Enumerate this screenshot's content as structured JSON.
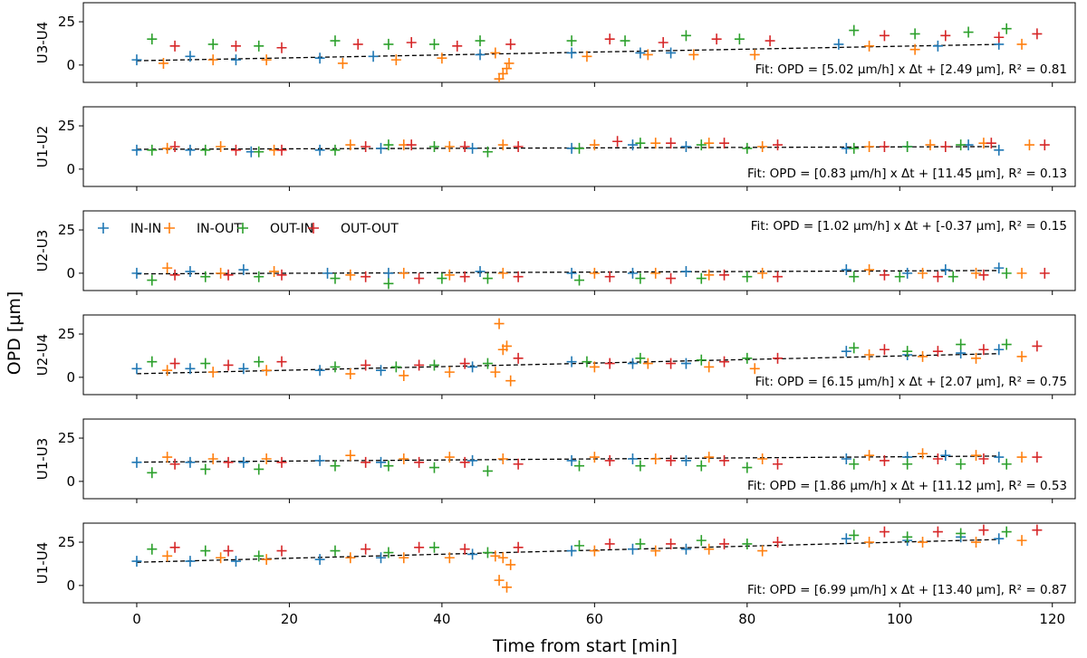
{
  "chart_data": {
    "type": "scatter",
    "xlabel": "Time from start [min]",
    "ylabel": "OPD [µm]",
    "xlim": [
      -7,
      123
    ],
    "ylim": [
      -10,
      36
    ],
    "xticks": [
      0,
      20,
      40,
      60,
      80,
      100,
      120
    ],
    "yticks": [
      0,
      25
    ],
    "legend": {
      "placement": "inside third panel, top-left",
      "entries": [
        {
          "name": "IN-IN",
          "color": "#1f77b4"
        },
        {
          "name": "IN-OUT",
          "color": "#ff7f0e"
        },
        {
          "name": "OUT-IN",
          "color": "#2ca02c"
        },
        {
          "name": "OUT-OUT",
          "color": "#d62728"
        }
      ]
    },
    "panels": [
      {
        "label": "U3-U4",
        "slope": 5.02,
        "intercept": 2.49,
        "fit_text": "Fit: OPD = [5.02 µm/h] x Δt + [2.49 µm], R² = 0.81",
        "fit_position": "bottom-right",
        "series": [
          {
            "name": "IN-IN",
            "x": [
              0,
              7,
              13,
              24,
              31,
              45,
              57,
              66,
              70,
              92,
              105,
              113
            ],
            "y": [
              3,
              5,
              3,
              4,
              5,
              6,
              7,
              7,
              7,
              12,
              11,
              12
            ]
          },
          {
            "name": "IN-OUT",
            "x": [
              3.5,
              10,
              17,
              27,
              34,
              40,
              47,
              47.5,
              48,
              48.5,
              48.8,
              59,
              67,
              73,
              81,
              96,
              102,
              116
            ],
            "y": [
              1,
              3,
              3,
              1,
              3,
              4,
              7,
              -8,
              -5,
              -2,
              1,
              5,
              6,
              6,
              6,
              11,
              9,
              12
            ]
          },
          {
            "name": "OUT-IN",
            "x": [
              2,
              10,
              16,
              26,
              33,
              39,
              45,
              57,
              64,
              72,
              79,
              94,
              102,
              109,
              114
            ],
            "y": [
              15,
              12,
              11,
              14,
              12,
              12,
              14,
              14,
              14,
              17,
              15,
              20,
              18,
              19,
              21
            ]
          },
          {
            "name": "OUT-OUT",
            "x": [
              5,
              13,
              19,
              29,
              36,
              42,
              49,
              62,
              69,
              76,
              83,
              98,
              106,
              113,
              118
            ],
            "y": [
              11,
              11,
              10,
              12,
              13,
              11,
              12,
              15,
              13,
              15,
              14,
              17,
              17,
              16,
              18
            ]
          }
        ]
      },
      {
        "label": "U1-U2",
        "slope": 0.83,
        "intercept": 11.45,
        "fit_text": "Fit: OPD = [0.83 µm/h] x Δt + [11.45 µm], R² = 0.13",
        "fit_position": "bottom-right",
        "series": [
          {
            "name": "IN-IN",
            "x": [
              0,
              7,
              15,
              24,
              32,
              44,
              57,
              65,
              72,
              93,
              101,
              109,
              113
            ],
            "y": [
              11,
              11,
              10,
              11,
              12,
              12,
              12,
              14,
              13,
              12,
              13,
              14,
              11
            ]
          },
          {
            "name": "IN-OUT",
            "x": [
              4,
              11,
              18,
              28,
              35,
              41,
              48,
              60,
              68,
              75,
              82,
              96,
              104,
              111,
              117
            ],
            "y": [
              12,
              13,
              11,
              14,
              14,
              13,
              14,
              14,
              15,
              15,
              13,
              13,
              14,
              15,
              14
            ]
          },
          {
            "name": "OUT-IN",
            "x": [
              2,
              9,
              16,
              26,
              33,
              39,
              46,
              58,
              66,
              74,
              80,
              94,
              101,
              108
            ],
            "y": [
              11,
              11,
              10,
              11,
              14,
              13,
              10,
              12,
              15,
              14,
              12,
              12,
              13,
              14
            ]
          },
          {
            "name": "OUT-OUT",
            "x": [
              5,
              13,
              19,
              30,
              36,
              43,
              50,
              63,
              70,
              77,
              84,
              98,
              106,
              112,
              119
            ],
            "y": [
              13,
              11,
              11,
              13,
              14,
              13,
              13,
              16,
              15,
              15,
              14,
              13,
              13,
              15,
              14
            ]
          }
        ]
      },
      {
        "label": "U2-U3",
        "slope": 1.02,
        "intercept": -0.37,
        "fit_text": "Fit: OPD = [1.02 µm/h] x Δt + [-0.37 µm], R² = 0.15",
        "fit_position": "top-right",
        "series": [
          {
            "name": "IN-IN",
            "x": [
              0,
              7,
              14,
              25,
              33,
              45,
              57,
              65,
              72,
              93,
              101,
              106,
              113
            ],
            "y": [
              0,
              1,
              2,
              0,
              0,
              1,
              0,
              0,
              1,
              2,
              0,
              2,
              3
            ]
          },
          {
            "name": "IN-OUT",
            "x": [
              4,
              11,
              18,
              28,
              35,
              41,
              48,
              60,
              68,
              75,
              82,
              96,
              103,
              110,
              116
            ],
            "y": [
              3,
              0,
              1,
              -1,
              0,
              -1,
              0,
              0,
              0,
              -1,
              0,
              2,
              0,
              0,
              0
            ]
          },
          {
            "name": "OUT-IN",
            "x": [
              2,
              9,
              16,
              26,
              33,
              40,
              46,
              58,
              66,
              74,
              80,
              94,
              100,
              107,
              114
            ],
            "y": [
              -4,
              -2,
              -2,
              -3,
              -6,
              -3,
              -3,
              -4,
              -3,
              -3,
              -2,
              -2,
              -2,
              -2,
              0
            ]
          },
          {
            "name": "OUT-OUT",
            "x": [
              5,
              12,
              19,
              30,
              37,
              43,
              50,
              62,
              70,
              77,
              84,
              98,
              105,
              111,
              119
            ],
            "y": [
              -1,
              -1,
              -1,
              -2,
              -3,
              -2,
              -2,
              -2,
              -3,
              -1,
              -2,
              -1,
              -2,
              -1,
              0
            ]
          }
        ]
      },
      {
        "label": "U2-U4",
        "slope": 6.15,
        "intercept": 2.07,
        "fit_text": "Fit: OPD = [6.15 µm/h] x Δt + [2.07 µm], R² = 0.75",
        "fit_position": "bottom-right",
        "series": [
          {
            "name": "IN-IN",
            "x": [
              0,
              7,
              14,
              24,
              32,
              44,
              57,
              65,
              72,
              93,
              101,
              108,
              113
            ],
            "y": [
              5,
              5,
              5,
              4,
              4,
              6,
              9,
              8,
              8,
              15,
              13,
              14,
              16
            ]
          },
          {
            "name": "IN-OUT",
            "x": [
              4,
              10,
              17,
              28,
              35,
              41,
              47,
              47.5,
              48,
              48.5,
              49,
              60,
              67,
              75,
              81,
              96,
              103,
              110,
              116
            ],
            "y": [
              4,
              3,
              4,
              2,
              1,
              3,
              3,
              31,
              16,
              18,
              -2,
              6,
              8,
              6,
              5,
              13,
              12,
              11,
              12
            ]
          },
          {
            "name": "OUT-IN",
            "x": [
              2,
              9,
              16,
              26,
              34,
              39,
              46,
              59,
              66,
              74,
              80,
              94,
              101,
              108,
              114
            ],
            "y": [
              9,
              8,
              9,
              6,
              6,
              7,
              8,
              9,
              11,
              10,
              11,
              17,
              15,
              19,
              19
            ]
          },
          {
            "name": "OUT-OUT",
            "x": [
              5,
              12,
              19,
              30,
              37,
              43,
              50,
              62,
              70,
              77,
              84,
              98,
              105,
              111,
              118
            ],
            "y": [
              8,
              7,
              9,
              7,
              7,
              8,
              11,
              8,
              8,
              9,
              11,
              16,
              15,
              16,
              18
            ]
          }
        ]
      },
      {
        "label": "U1-U3",
        "slope": 1.86,
        "intercept": 11.12,
        "fit_text": "Fit: OPD = [1.86 µm/h] x Δt + [11.12 µm], R² = 0.53",
        "fit_position": "bottom-right",
        "series": [
          {
            "name": "IN-IN",
            "x": [
              0,
              7,
              14,
              24,
              32,
              44,
              57,
              65,
              72,
              93,
              101,
              106,
              113
            ],
            "y": [
              11,
              11,
              11,
              12,
              11,
              12,
              12,
              13,
              12,
              13,
              14,
              15,
              14
            ]
          },
          {
            "name": "IN-OUT",
            "x": [
              4,
              10,
              17,
              28,
              35,
              41,
              48,
              60,
              68,
              75,
              82,
              96,
              103,
              110,
              116
            ],
            "y": [
              14,
              13,
              13,
              15,
              13,
              14,
              13,
              14,
              13,
              14,
              13,
              15,
              16,
              15,
              14
            ]
          },
          {
            "name": "OUT-IN",
            "x": [
              2,
              9,
              16,
              26,
              33,
              39,
              46,
              58,
              66,
              74,
              80,
              94,
              101,
              108,
              114
            ],
            "y": [
              5,
              7,
              7,
              9,
              9,
              8,
              6,
              9,
              9,
              9,
              8,
              10,
              10,
              10,
              10
            ]
          },
          {
            "name": "OUT-OUT",
            "x": [
              5,
              12,
              19,
              30,
              37,
              43,
              50,
              62,
              70,
              77,
              84,
              98,
              105,
              111,
              118
            ],
            "y": [
              10,
              11,
              11,
              11,
              11,
              11,
              10,
              12,
              12,
              12,
              10,
              12,
              13,
              13,
              14
            ]
          }
        ]
      },
      {
        "label": "U1-U4",
        "slope": 6.99,
        "intercept": 13.4,
        "fit_text": "Fit: OPD = [6.99 µm/h] x Δt + [13.40 µm], R² = 0.87",
        "fit_position": "bottom-right",
        "series": [
          {
            "name": "IN-IN",
            "x": [
              0,
              7,
              13,
              24,
              32,
              44,
              57,
              65,
              72,
              93,
              101,
              108,
              113
            ],
            "y": [
              14,
              14,
              14,
              15,
              16,
              18,
              20,
              21,
              21,
              27,
              26,
              28,
              27
            ]
          },
          {
            "name": "IN-OUT",
            "x": [
              4,
              11,
              17,
              28,
              35,
              41,
              47,
              47.5,
              48,
              48.5,
              49,
              60,
              68,
              75,
              82,
              96,
              103,
              110,
              116
            ],
            "y": [
              17,
              16,
              15,
              16,
              16,
              16,
              17,
              3,
              16,
              -1,
              12,
              20,
              20,
              21,
              20,
              25,
              25,
              25,
              26
            ]
          },
          {
            "name": "OUT-IN",
            "x": [
              2,
              9,
              16,
              26,
              33,
              39,
              46,
              58,
              66,
              74,
              80,
              94,
              101,
              108,
              114
            ],
            "y": [
              21,
              20,
              17,
              20,
              19,
              22,
              19,
              23,
              24,
              26,
              24,
              29,
              28,
              30,
              31
            ]
          },
          {
            "name": "OUT-OUT",
            "x": [
              5,
              12,
              19,
              30,
              37,
              43,
              50,
              62,
              70,
              77,
              84,
              98,
              105,
              111,
              118
            ],
            "y": [
              22,
              20,
              20,
              21,
              22,
              21,
              22,
              24,
              24,
              24,
              25,
              31,
              31,
              32,
              32
            ]
          }
        ]
      }
    ]
  }
}
